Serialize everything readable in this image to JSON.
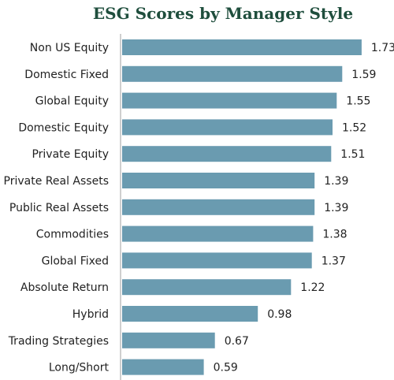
{
  "chart_data": {
    "type": "bar",
    "orientation": "horizontal",
    "title": "ESG Scores by Manager Style",
    "categories": [
      "Non US Equity",
      "Domestic Fixed",
      "Global Equity",
      "Domestic Equity",
      "Private Equity",
      "Private Real Assets",
      "Public Real Assets",
      "Commodities",
      "Global Fixed",
      "Absolute Return",
      "Hybrid",
      "Trading Strategies",
      "Long/Short"
    ],
    "values": [
      1.73,
      1.59,
      1.55,
      1.52,
      1.51,
      1.39,
      1.39,
      1.38,
      1.37,
      1.22,
      0.98,
      0.67,
      0.59
    ],
    "value_labels": [
      "1.73",
      "1.59",
      "1.55",
      "1.52",
      "1.51",
      "1.39",
      "1.39",
      "1.38",
      "1.37",
      "1.22",
      "0.98",
      "0.67",
      "0.59"
    ],
    "xlim": [
      0,
      1.85
    ],
    "grid": false,
    "bar_color": "#6a9bb0",
    "axis_color": "#bfbfbf",
    "title_color": "#1f4e3d"
  }
}
